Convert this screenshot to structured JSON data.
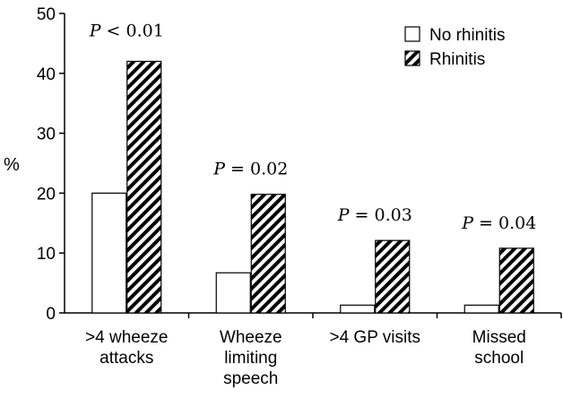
{
  "chart_data": {
    "type": "bar",
    "title": "",
    "xlabel": "",
    "ylabel": "%",
    "ylim": [
      0,
      50
    ],
    "yticks": [
      0,
      10,
      20,
      30,
      40,
      50
    ],
    "grid": false,
    "legend_position": "top-right",
    "categories": [
      [
        ">4 wheeze",
        "attacks"
      ],
      [
        "Wheeze",
        "limiting",
        "speech"
      ],
      [
        ">4 GP visits"
      ],
      [
        "Missed",
        "school"
      ]
    ],
    "series": [
      {
        "name": "No rhinitis",
        "fill": "plain",
        "color": "#ffffff",
        "values": [
          20,
          6.7,
          1.3,
          1.3
        ]
      },
      {
        "name": "Rhinitis",
        "fill": "hatched",
        "color": "#000000",
        "values": [
          42,
          19.8,
          12.1,
          10.8
        ]
      }
    ],
    "annotations": [
      {
        "p_label": "P",
        "text": " < 0.01"
      },
      {
        "p_label": "P",
        "text": " = 0.02"
      },
      {
        "p_label": "P",
        "text": " = 0.03"
      },
      {
        "p_label": "P",
        "text": " = 0.04"
      }
    ]
  }
}
